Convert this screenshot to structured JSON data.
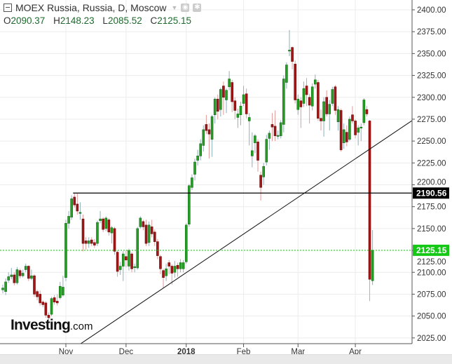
{
  "header": {
    "title": "MOEX Russia, Russia, D, Moscow",
    "ohlc": {
      "o_label": "O",
      "o": "2090.37",
      "h_label": "H",
      "h": "2148.23",
      "l_label": "L",
      "l": "2085.52",
      "c_label": "C",
      "c": "2125.15"
    }
  },
  "logo": {
    "name": "Investing",
    "suffix": ".com"
  },
  "colors": {
    "up": "#23a023",
    "down": "#a51515",
    "up_wick": "#8fb0b8",
    "down_wick": "#e39a9a",
    "current_price": "#15c815",
    "level_label": "#000000",
    "grid": "#ececec"
  },
  "chart_data": {
    "type": "candlestick",
    "ylim": [
      2012,
      2412
    ],
    "y_ticks": [
      "2025.00",
      "2050.00",
      "2075.00",
      "2100.00",
      "2125.00",
      "2150.00",
      "2175.00",
      "2200.00",
      "2225.00",
      "2250.00",
      "2275.00",
      "2300.00",
      "2325.00",
      "2350.00",
      "2375.00",
      "2400.00"
    ],
    "x_ticks": [
      {
        "date": "2017-11-01",
        "label": "Nov",
        "bold": false
      },
      {
        "date": "2017-12-01",
        "label": "Dec",
        "bold": false
      },
      {
        "date": "2018-01-03",
        "label": "2018",
        "bold": true
      },
      {
        "date": "2018-02-01",
        "label": "Feb",
        "bold": false
      },
      {
        "date": "2018-03-01",
        "label": "Mar",
        "bold": false
      },
      {
        "date": "2018-04-02",
        "label": "Apr",
        "bold": false
      }
    ],
    "grid": true,
    "horizontal_level": {
      "value": 2190.56,
      "label": "2190.56",
      "from_date": "2017-11-07"
    },
    "current_price": {
      "value": 2125.15,
      "label": "2125.15"
    },
    "trendline": {
      "from": [
        "2017-11-09",
        2018
      ],
      "to": [
        "2018-04-10",
        2243
      ],
      "extend": "right"
    },
    "candles_fields": [
      "date",
      "open",
      "high",
      "low",
      "close"
    ],
    "candles": [
      [
        "2017-10-02",
        2080,
        2086,
        2076,
        2082
      ],
      [
        "2017-10-03",
        2078,
        2093,
        2074,
        2089
      ],
      [
        "2017-10-04",
        2091,
        2100,
        2088,
        2095
      ],
      [
        "2017-10-05",
        2095,
        2105,
        2092,
        2097
      ],
      [
        "2017-10-06",
        2097,
        2100,
        2085,
        2088
      ],
      [
        "2017-10-09",
        2088,
        2106,
        2086,
        2103
      ],
      [
        "2017-10-10",
        2102,
        2104,
        2093,
        2096
      ],
      [
        "2017-10-11",
        2096,
        2103,
        2094,
        2099
      ],
      [
        "2017-10-12",
        2103,
        2110,
        2100,
        2107
      ],
      [
        "2017-10-13",
        2107,
        2108,
        2090,
        2093
      ],
      [
        "2017-10-16",
        2093,
        2103,
        2091,
        2096
      ],
      [
        "2017-10-17",
        2096,
        2098,
        2072,
        2075
      ],
      [
        "2017-10-18",
        2078,
        2080,
        2068,
        2072
      ],
      [
        "2017-10-19",
        2075,
        2079,
        2062,
        2065
      ],
      [
        "2017-10-20",
        2066,
        2068,
        2060,
        2063
      ],
      [
        "2017-10-23",
        2065,
        2067,
        2048,
        2051
      ],
      [
        "2017-10-24",
        2051,
        2054,
        2045,
        2048
      ],
      [
        "2017-10-25",
        2052,
        2072,
        2050,
        2070
      ],
      [
        "2017-10-26",
        2071,
        2074,
        2063,
        2066
      ],
      [
        "2017-10-27",
        2067,
        2075,
        2062,
        2065
      ],
      [
        "2017-10-30",
        2071,
        2089,
        2069,
        2084
      ],
      [
        "2017-10-31",
        2074,
        2096,
        2072,
        2083
      ],
      [
        "2017-11-01",
        2094,
        2160,
        2090,
        2156
      ],
      [
        "2017-11-02",
        2156,
        2170,
        2150,
        2164
      ],
      [
        "2017-11-03",
        2163,
        2188,
        2160,
        2184
      ],
      [
        "2017-11-07",
        2186,
        2190.56,
        2174,
        2177
      ],
      [
        "2017-11-08",
        2178,
        2190,
        2166,
        2170
      ],
      [
        "2017-11-09",
        2168,
        2180,
        2160,
        2168.5
      ],
      [
        "2017-11-10",
        2161,
        2166,
        2124,
        2133
      ],
      [
        "2017-11-13",
        2136,
        2140,
        2126,
        2133
      ],
      [
        "2017-11-14",
        2133,
        2140,
        2128,
        2136
      ],
      [
        "2017-11-15",
        2137,
        2140,
        2130,
        2133
      ],
      [
        "2017-11-16",
        2134,
        2138,
        2128,
        2131
      ],
      [
        "2017-11-17",
        2133,
        2159,
        2130,
        2157
      ],
      [
        "2017-11-20",
        2159,
        2170,
        2156,
        2161
      ],
      [
        "2017-11-21",
        2161,
        2163,
        2146,
        2149
      ],
      [
        "2017-11-22",
        2150,
        2164,
        2147,
        2162
      ],
      [
        "2017-11-23",
        2160,
        2162,
        2142,
        2146
      ],
      [
        "2017-11-24",
        2145,
        2153,
        2133,
        2151
      ],
      [
        "2017-11-27",
        2150,
        2152,
        2120,
        2124
      ],
      [
        "2017-11-28",
        2123,
        2125,
        2095,
        2101
      ],
      [
        "2017-11-29",
        2103,
        2112,
        2097,
        2107
      ],
      [
        "2017-11-30",
        2107,
        2124,
        2090,
        2121
      ],
      [
        "2017-12-01",
        2118,
        2125,
        2106,
        2114
      ],
      [
        "2017-12-04",
        2107,
        2127,
        2102,
        2125
      ],
      [
        "2017-12-05",
        2121,
        2123,
        2100,
        2104
      ],
      [
        "2017-12-06",
        2106,
        2110,
        2100,
        2106.5
      ],
      [
        "2017-12-07",
        2105,
        2152,
        2103,
        2150
      ],
      [
        "2017-12-08",
        2152,
        2164,
        2150,
        2162
      ],
      [
        "2017-12-11",
        2158,
        2160,
        2148,
        2152
      ],
      [
        "2017-12-12",
        2154,
        2160,
        2130,
        2133
      ],
      [
        "2017-12-13",
        2134,
        2158,
        2130,
        2154
      ],
      [
        "2017-12-14",
        2152,
        2160,
        2140,
        2144
      ],
      [
        "2017-12-15",
        2146,
        2149,
        2130,
        2135
      ],
      [
        "2017-12-18",
        2135,
        2138,
        2115,
        2119
      ],
      [
        "2017-12-19",
        2118,
        2120,
        2098,
        2104
      ],
      [
        "2017-12-20",
        2102,
        2104,
        2082,
        2094
      ],
      [
        "2017-12-21",
        2096,
        2110,
        2090,
        2104
      ],
      [
        "2017-12-22",
        2111,
        2114,
        2098,
        2107
      ],
      [
        "2017-12-25",
        2107,
        2109,
        2086,
        2099
      ],
      [
        "2017-12-26",
        2100,
        2113,
        2094,
        2107
      ],
      [
        "2017-12-27",
        2108,
        2111,
        2095,
        2104
      ],
      [
        "2017-12-28",
        2104,
        2115,
        2100,
        2111
      ],
      [
        "2017-12-29",
        2104,
        2114,
        2100,
        2111
      ],
      [
        "2018-01-03",
        2112,
        2156,
        2110,
        2154
      ],
      [
        "2018-01-04",
        2155,
        2201,
        2152,
        2199
      ],
      [
        "2018-01-05",
        2197,
        2212,
        2194,
        2208
      ],
      [
        "2018-01-09",
        2212,
        2230,
        2205,
        2226
      ],
      [
        "2018-01-10",
        2228,
        2240,
        2222,
        2233
      ],
      [
        "2018-01-11",
        2233,
        2252,
        2228,
        2247
      ],
      [
        "2018-01-12",
        2245,
        2268,
        2238,
        2263
      ],
      [
        "2018-01-15",
        2269,
        2280,
        2258,
        2262
      ],
      [
        "2018-01-16",
        2263,
        2270,
        2230,
        2258
      ],
      [
        "2018-01-17",
        2252,
        2280,
        2232,
        2278
      ],
      [
        "2018-01-18",
        2280,
        2300,
        2270,
        2298
      ],
      [
        "2018-01-19",
        2298,
        2303,
        2275,
        2284
      ],
      [
        "2018-01-22",
        2286,
        2311,
        2278,
        2309
      ],
      [
        "2018-01-23",
        2313,
        2318,
        2280,
        2300
      ],
      [
        "2018-01-24",
        2297,
        2310,
        2282,
        2308
      ],
      [
        "2018-01-25",
        2312,
        2330,
        2308,
        2321
      ],
      [
        "2018-01-26",
        2317,
        2320,
        2283,
        2295
      ],
      [
        "2018-01-29",
        2296,
        2300,
        2275,
        2285
      ],
      [
        "2018-01-30",
        2277,
        2287,
        2265,
        2281
      ],
      [
        "2018-01-31",
        2280,
        2295,
        2268,
        2290
      ],
      [
        "2018-02-01",
        2293,
        2313,
        2290,
        2303
      ],
      [
        "2018-02-02",
        2304,
        2310,
        2276,
        2281
      ],
      [
        "2018-02-05",
        2273,
        2282,
        2245,
        2277
      ],
      [
        "2018-02-06",
        2233,
        2260,
        2220,
        2239
      ],
      [
        "2018-02-07",
        2248,
        2258,
        2236,
        2256
      ],
      [
        "2018-02-08",
        2249,
        2252,
        2215,
        2228
      ],
      [
        "2018-02-09",
        2211,
        2215,
        2182,
        2197
      ],
      [
        "2018-02-12",
        2209,
        2225,
        2200,
        2221
      ],
      [
        "2018-02-13",
        2226,
        2257,
        2222,
        2252
      ],
      [
        "2018-02-14",
        2253,
        2262,
        2240,
        2259
      ],
      [
        "2018-02-15",
        2269,
        2282,
        2250,
        2266
      ],
      [
        "2018-02-16",
        2267,
        2285,
        2250,
        2256
      ],
      [
        "2018-02-19",
        2256,
        2262,
        2252,
        2256.5
      ],
      [
        "2018-02-20",
        2256,
        2274,
        2253,
        2271
      ],
      [
        "2018-02-21",
        2269,
        2325,
        2260,
        2321
      ],
      [
        "2018-02-22",
        2317,
        2340,
        2310,
        2337
      ],
      [
        "2018-02-26",
        2353,
        2377,
        2347,
        2354
      ],
      [
        "2018-02-27",
        2357,
        2358,
        2332,
        2341
      ],
      [
        "2018-02-28",
        2338,
        2342,
        2293,
        2297
      ],
      [
        "2018-03-01",
        2286,
        2303,
        2280,
        2298
      ],
      [
        "2018-03-02",
        2296,
        2300,
        2265,
        2289
      ],
      [
        "2018-03-05",
        2293,
        2318,
        2289,
        2310
      ],
      [
        "2018-03-06",
        2313,
        2322,
        2290,
        2303
      ],
      [
        "2018-03-07",
        2300,
        2304,
        2270,
        2291
      ],
      [
        "2018-03-12",
        2290,
        2316,
        2285,
        2312
      ],
      [
        "2018-03-13",
        2315,
        2326,
        2310,
        2320
      ],
      [
        "2018-03-14",
        2317,
        2320,
        2273,
        2276
      ],
      [
        "2018-03-15",
        2276,
        2286,
        2262,
        2273
      ],
      [
        "2018-03-16",
        2273,
        2300,
        2255,
        2295
      ],
      [
        "2018-03-19",
        2300,
        2308,
        2278,
        2281
      ],
      [
        "2018-03-20",
        2281,
        2297,
        2262,
        2292
      ],
      [
        "2018-03-21",
        2293,
        2312,
        2290,
        2309
      ],
      [
        "2018-03-22",
        2312,
        2314,
        2280,
        2285
      ],
      [
        "2018-03-23",
        2272,
        2290,
        2262,
        2286
      ],
      [
        "2018-03-26",
        2285,
        2287,
        2238,
        2240
      ],
      [
        "2018-03-27",
        2248,
        2270,
        2241,
        2263
      ],
      [
        "2018-03-28",
        2260,
        2268,
        2244,
        2249
      ],
      [
        "2018-03-29",
        2252,
        2278,
        2250,
        2275
      ],
      [
        "2018-03-30",
        2280,
        2290,
        2270,
        2273
      ],
      [
        "2018-04-02",
        2273,
        2275,
        2253,
        2257
      ],
      [
        "2018-04-03",
        2260,
        2268,
        2245,
        2265
      ],
      [
        "2018-04-04",
        2265,
        2270,
        2250,
        2266
      ],
      [
        "2018-04-05",
        2271,
        2299,
        2268,
        2297
      ],
      [
        "2018-04-06",
        2286,
        2290,
        2278,
        2281
      ],
      [
        "2018-04-09",
        2273,
        2274,
        2067,
        2092
      ],
      [
        "2018-04-10",
        2090.37,
        2148.23,
        2085.52,
        2125.15
      ]
    ]
  }
}
